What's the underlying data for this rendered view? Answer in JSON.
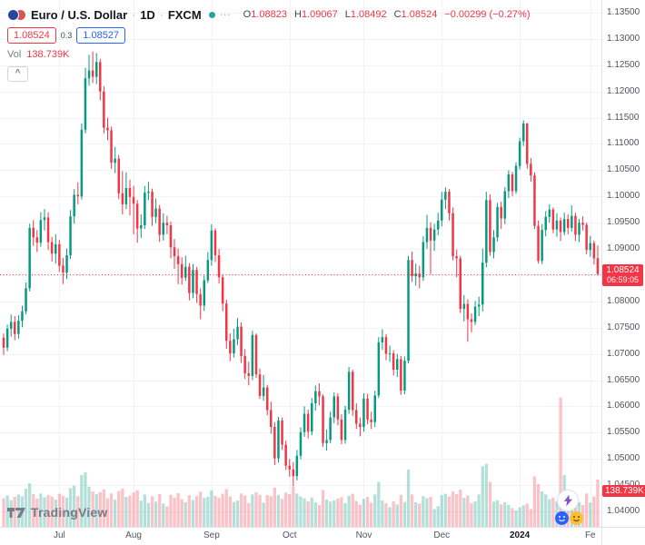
{
  "header": {
    "symbol_name": "Euro / U.S. Dollar",
    "sep": "·",
    "interval": "1D",
    "exchange": "FXCM",
    "ohlc": {
      "o_label": "O",
      "o_value": "1.08823",
      "h_label": "H",
      "h_value": "1.09067",
      "l_label": "L",
      "l_value": "1.08492",
      "c_label": "C",
      "c_value": "1.08524",
      "change": "−0.00299 (−0.27%)"
    },
    "bid": "1.08524",
    "spread": "0.3",
    "ask": "1.08527",
    "vol_label": "Vol",
    "vol_value": "138.739K"
  },
  "price_label": {
    "price": "1.08524",
    "countdown": "06:59:05"
  },
  "volume_axis_label": "138.739K",
  "watermark": {
    "brand": "TradingView"
  },
  "icons": {
    "collapse": "^",
    "more": "⋯"
  },
  "chart_data": {
    "type": "candlestick",
    "title": "Euro / U.S. Dollar",
    "symbol": "EURUSD",
    "interval": "1D",
    "exchange": "FXCM",
    "colors": {
      "up": "#089981",
      "down": "#f23645",
      "volume_up": "rgba(8,153,129,0.3)",
      "volume_down": "rgba(242,54,69,0.3)",
      "grid": "#f0f3fa",
      "axis_text": "#50535e",
      "accent_blue": "#2962ff"
    },
    "y_axis": {
      "top": 1.135,
      "bottom": 1.04
    },
    "last_price": 1.08524,
    "price_ticks": [
      "1.13500",
      "1.13000",
      "1.12500",
      "1.12000",
      "1.11500",
      "1.11000",
      "1.10500",
      "1.10000",
      "1.09500",
      "1.09000",
      "1.08500",
      "1.08000",
      "1.07500",
      "1.07000",
      "1.06500",
      "1.06000",
      "1.05500",
      "1.05000",
      "1.04500",
      "1.04000"
    ],
    "month_ticks": [
      {
        "label": "Jul",
        "i": 15
      },
      {
        "label": "Aug",
        "i": 35
      },
      {
        "label": "Sep",
        "i": 56
      },
      {
        "label": "Oct",
        "i": 77
      },
      {
        "label": "Nov",
        "i": 97
      },
      {
        "label": "Dec",
        "i": 118
      },
      {
        "label": "2024",
        "i": 139,
        "year": true
      },
      {
        "label": "Fe",
        "i": 158
      }
    ],
    "volume_axis_max": 400,
    "candle_format": [
      "open",
      "high",
      "low",
      "close",
      "volume_k"
    ],
    "candles": [
      [
        1.0731,
        1.0739,
        1.0698,
        1.0712,
        84
      ],
      [
        1.0712,
        1.0756,
        1.0705,
        1.0748,
        92
      ],
      [
        1.0748,
        1.0775,
        1.0733,
        1.0761,
        78
      ],
      [
        1.0761,
        1.0772,
        1.0726,
        1.0738,
        88
      ],
      [
        1.0738,
        1.0774,
        1.0729,
        1.0763,
        95
      ],
      [
        1.0763,
        1.0792,
        1.0751,
        1.0781,
        90
      ],
      [
        1.0781,
        1.0836,
        1.0775,
        1.0825,
        112
      ],
      [
        1.0825,
        1.0948,
        1.0819,
        1.094,
        128
      ],
      [
        1.094,
        1.0955,
        1.0906,
        1.0922,
        96
      ],
      [
        1.0922,
        1.0936,
        1.0894,
        1.0912,
        83
      ],
      [
        1.0912,
        1.097,
        1.0904,
        1.0955,
        98
      ],
      [
        1.0955,
        1.0976,
        1.0935,
        1.096,
        87
      ],
      [
        1.096,
        1.097,
        1.0898,
        1.0913,
        93
      ],
      [
        1.0913,
        1.0923,
        1.0876,
        1.0891,
        89
      ],
      [
        1.0891,
        1.0928,
        1.0872,
        1.0909,
        80
      ],
      [
        1.0909,
        1.0917,
        1.0856,
        1.0868,
        97
      ],
      [
        1.0868,
        1.0883,
        1.0833,
        1.0855,
        91
      ],
      [
        1.0855,
        1.0901,
        1.0843,
        1.0888,
        86
      ],
      [
        1.0888,
        1.0974,
        1.0881,
        1.0962,
        114
      ],
      [
        1.0962,
        1.1014,
        1.0948,
        1.1003,
        121
      ],
      [
        1.1003,
        1.1027,
        1.0985,
        1.1,
        90
      ],
      [
        1.1,
        1.1139,
        1.0994,
        1.1127,
        152
      ],
      [
        1.1127,
        1.1245,
        1.112,
        1.1225,
        160
      ],
      [
        1.1225,
        1.127,
        1.1211,
        1.124,
        118
      ],
      [
        1.124,
        1.1276,
        1.1216,
        1.1228,
        104
      ],
      [
        1.1228,
        1.1273,
        1.1214,
        1.1256,
        96
      ],
      [
        1.1256,
        1.1262,
        1.1183,
        1.12,
        102
      ],
      [
        1.12,
        1.121,
        1.112,
        1.1131,
        110
      ],
      [
        1.1131,
        1.115,
        1.1107,
        1.1126,
        84
      ],
      [
        1.1126,
        1.1133,
        1.1052,
        1.1064,
        98
      ],
      [
        1.1064,
        1.1094,
        1.1044,
        1.1072,
        80
      ],
      [
        1.1072,
        1.1079,
        1.0995,
        1.1006,
        105
      ],
      [
        1.1006,
        1.1048,
        1.0966,
        1.0985,
        112
      ],
      [
        1.0985,
        1.1046,
        1.0976,
        1.1016,
        88
      ],
      [
        1.1016,
        1.1032,
        1.0964,
        1.0999,
        92
      ],
      [
        1.0999,
        1.102,
        1.0928,
        1.0986,
        101
      ],
      [
        1.0986,
        1.0993,
        1.0912,
        1.0939,
        108
      ],
      [
        1.0939,
        1.0966,
        1.0921,
        1.0945,
        77
      ],
      [
        1.0945,
        1.102,
        1.0938,
        1.1007,
        95
      ],
      [
        1.1007,
        1.1028,
        1.0993,
        1.1009,
        70
      ],
      [
        1.1009,
        1.1015,
        1.0944,
        1.0961,
        90
      ],
      [
        1.0961,
        1.0996,
        1.0949,
        1.0977,
        74
      ],
      [
        1.0977,
        1.0984,
        1.0913,
        1.0927,
        96
      ],
      [
        1.0927,
        1.0968,
        1.0916,
        1.095,
        68
      ],
      [
        1.095,
        1.0963,
        1.0928,
        1.0945,
        60
      ],
      [
        1.0945,
        1.0952,
        1.0882,
        1.0903,
        94
      ],
      [
        1.0903,
        1.0919,
        1.0862,
        1.0886,
        86
      ],
      [
        1.0886,
        1.0901,
        1.0833,
        1.0871,
        99
      ],
      [
        1.0871,
        1.0884,
        1.0832,
        1.0845,
        81
      ],
      [
        1.0845,
        1.0887,
        1.0839,
        1.0866,
        72
      ],
      [
        1.0866,
        1.0873,
        1.0802,
        1.0816,
        93
      ],
      [
        1.0816,
        1.0871,
        1.0806,
        1.086,
        79
      ],
      [
        1.086,
        1.0866,
        1.0797,
        1.0814,
        90
      ],
      [
        1.0814,
        1.0825,
        1.0766,
        1.0792,
        103
      ],
      [
        1.0792,
        1.0849,
        1.0782,
        1.084,
        85
      ],
      [
        1.084,
        1.0894,
        1.0835,
        1.0879,
        88
      ],
      [
        1.0879,
        1.0947,
        1.0868,
        1.0935,
        107
      ],
      [
        1.0935,
        1.0939,
        1.0875,
        1.0888,
        91
      ],
      [
        1.0888,
        1.09,
        1.0834,
        1.0846,
        85
      ],
      [
        1.0846,
        1.0852,
        1.0781,
        1.0796,
        97
      ],
      [
        1.0796,
        1.0803,
        1.071,
        1.0725,
        111
      ],
      [
        1.0725,
        1.0739,
        1.0686,
        1.0701,
        89
      ],
      [
        1.0701,
        1.0748,
        1.0693,
        1.0728,
        73
      ],
      [
        1.0728,
        1.0768,
        1.0717,
        1.0752,
        77
      ],
      [
        1.0752,
        1.076,
        1.0683,
        1.0696,
        98
      ],
      [
        1.0696,
        1.0709,
        1.0652,
        1.0663,
        92
      ],
      [
        1.0663,
        1.0685,
        1.064,
        1.0658,
        70
      ],
      [
        1.0658,
        1.0744,
        1.065,
        1.0736,
        95
      ],
      [
        1.0736,
        1.0739,
        1.0654,
        1.0661,
        102
      ],
      [
        1.0661,
        1.0672,
        1.0614,
        1.062,
        94
      ],
      [
        1.062,
        1.066,
        1.0611,
        1.0636,
        71
      ],
      [
        1.0636,
        1.0641,
        1.0583,
        1.0593,
        93
      ],
      [
        1.0593,
        1.0609,
        1.0548,
        1.0561,
        90
      ],
      [
        1.0561,
        1.057,
        1.0488,
        1.0501,
        115
      ],
      [
        1.0501,
        1.058,
        1.0493,
        1.0573,
        94
      ],
      [
        1.0573,
        1.0579,
        1.0517,
        1.0527,
        82
      ],
      [
        1.0527,
        1.0535,
        1.0479,
        1.0487,
        100
      ],
      [
        1.0487,
        1.05,
        1.0466,
        1.048,
        96
      ],
      [
        1.048,
        1.0494,
        1.0448,
        1.0467,
        118
      ],
      [
        1.0467,
        1.0517,
        1.0459,
        1.0506,
        98
      ],
      [
        1.0506,
        1.056,
        1.0499,
        1.0551,
        89
      ],
      [
        1.0551,
        1.06,
        1.0542,
        1.0586,
        84
      ],
      [
        1.0586,
        1.0594,
        1.0539,
        1.0552,
        75
      ],
      [
        1.0552,
        1.0616,
        1.0545,
        1.0606,
        86
      ],
      [
        1.0606,
        1.064,
        1.0592,
        1.0629,
        72
      ],
      [
        1.0629,
        1.0644,
        1.0602,
        1.0619,
        64
      ],
      [
        1.0619,
        1.0623,
        1.0523,
        1.053,
        108
      ],
      [
        1.053,
        1.0556,
        1.0516,
        1.0536,
        80
      ],
      [
        1.0536,
        1.059,
        1.053,
        1.0579,
        74
      ],
      [
        1.0579,
        1.0627,
        1.0568,
        1.0619,
        78
      ],
      [
        1.0619,
        1.0625,
        1.0564,
        1.0575,
        83
      ],
      [
        1.0575,
        1.0585,
        1.0528,
        1.0536,
        87
      ],
      [
        1.0536,
        1.0601,
        1.0529,
        1.0594,
        69
      ],
      [
        1.0594,
        1.0675,
        1.0586,
        1.0666,
        91
      ],
      [
        1.0666,
        1.067,
        1.0582,
        1.0593,
        97
      ],
      [
        1.0593,
        1.0606,
        1.0557,
        1.0567,
        76
      ],
      [
        1.0567,
        1.0579,
        1.0543,
        1.0561,
        65
      ],
      [
        1.0561,
        1.0625,
        1.0552,
        1.0615,
        82
      ],
      [
        1.0615,
        1.0624,
        1.0566,
        1.0575,
        88
      ],
      [
        1.0575,
        1.059,
        1.0557,
        1.057,
        71
      ],
      [
        1.057,
        1.063,
        1.0561,
        1.0621,
        95
      ],
      [
        1.0621,
        1.0732,
        1.0616,
        1.0722,
        132
      ],
      [
        1.0722,
        1.0747,
        1.0708,
        1.0732,
        77
      ],
      [
        1.0732,
        1.0738,
        1.0688,
        1.07,
        69
      ],
      [
        1.07,
        1.0716,
        1.0685,
        1.0701,
        58
      ],
      [
        1.0701,
        1.0707,
        1.0659,
        1.067,
        75
      ],
      [
        1.067,
        1.07,
        1.0656,
        1.069,
        66
      ],
      [
        1.069,
        1.0696,
        1.0622,
        1.063,
        94
      ],
      [
        1.063,
        1.0695,
        1.0623,
        1.0687,
        73
      ],
      [
        1.0687,
        1.0887,
        1.0682,
        1.0879,
        168
      ],
      [
        1.0879,
        1.0895,
        1.0837,
        1.0848,
        95
      ],
      [
        1.0848,
        1.0872,
        1.083,
        1.0853,
        72
      ],
      [
        1.0853,
        1.0868,
        1.0825,
        1.0846,
        68
      ],
      [
        1.0846,
        1.0924,
        1.0839,
        1.0913,
        90
      ],
      [
        1.0913,
        1.0965,
        1.09,
        1.094,
        84
      ],
      [
        1.094,
        1.0951,
        1.0852,
        1.0916,
        88
      ],
      [
        1.0916,
        1.0948,
        1.0896,
        1.0937,
        52
      ],
      [
        1.0937,
        1.0969,
        1.0926,
        1.0954,
        61
      ],
      [
        1.0954,
        1.1009,
        1.0943,
        1.0994,
        93
      ],
      [
        1.0994,
        1.1017,
        1.0976,
        1.1009,
        97
      ],
      [
        1.1009,
        1.1014,
        1.0954,
        1.0968,
        89
      ],
      [
        1.0968,
        1.0979,
        1.0878,
        1.0886,
        104
      ],
      [
        1.0886,
        1.0899,
        1.0846,
        1.0882,
        96
      ],
      [
        1.0882,
        1.0887,
        1.0778,
        1.0786,
        109
      ],
      [
        1.0786,
        1.0812,
        1.0762,
        1.0795,
        85
      ],
      [
        1.0795,
        1.0804,
        1.0723,
        1.0766,
        92
      ],
      [
        1.0766,
        1.0777,
        1.0741,
        1.0761,
        70
      ],
      [
        1.0761,
        1.0801,
        1.0755,
        1.079,
        75
      ],
      [
        1.079,
        1.0809,
        1.0772,
        1.0794,
        95
      ],
      [
        1.0794,
        1.0901,
        1.0781,
        1.0874,
        178
      ],
      [
        1.0874,
        1.1009,
        1.0865,
        1.0993,
        185
      ],
      [
        1.0993,
        1.1004,
        1.0887,
        1.0894,
        132
      ],
      [
        1.0894,
        1.0936,
        1.0882,
        1.0922,
        74
      ],
      [
        1.0922,
        1.0988,
        1.0914,
        1.098,
        78
      ],
      [
        1.098,
        1.099,
        1.0938,
        1.0958,
        66
      ],
      [
        1.0958,
        1.1018,
        1.0947,
        1.101,
        72
      ],
      [
        1.101,
        1.105,
        1.0997,
        1.1042,
        64
      ],
      [
        1.1042,
        1.1047,
        1.1001,
        1.101,
        55
      ],
      [
        1.101,
        1.1065,
        1.1005,
        1.1058,
        48
      ],
      [
        1.1058,
        1.1112,
        1.1051,
        1.1105,
        57
      ],
      [
        1.1105,
        1.1145,
        1.1096,
        1.1139,
        63
      ],
      [
        1.1139,
        1.114,
        1.1053,
        1.1062,
        68
      ],
      [
        1.1062,
        1.1073,
        1.1028,
        1.104,
        52
      ],
      [
        1.104,
        1.1046,
        1.0938,
        1.0944,
        148
      ],
      [
        1.0944,
        1.0954,
        1.0872,
        1.0877,
        126
      ],
      [
        1.0877,
        1.0947,
        1.0871,
        1.0936,
        104
      ],
      [
        1.0936,
        1.0972,
        1.0924,
        1.0961,
        95
      ],
      [
        1.0961,
        1.0985,
        1.095,
        1.0975,
        81
      ],
      [
        1.0975,
        1.0979,
        1.093,
        1.0937,
        86
      ],
      [
        1.0937,
        1.0968,
        1.0923,
        1.0954,
        74
      ],
      [
        1.0954,
        1.096,
        1.0915,
        1.0932,
        380
      ],
      [
        1.0932,
        1.0969,
        1.0926,
        1.0957,
        152
      ],
      [
        1.0957,
        1.0966,
        1.0928,
        1.094,
        96
      ],
      [
        1.094,
        1.0983,
        1.0933,
        1.0963,
        88
      ],
      [
        1.0963,
        1.0969,
        1.0915,
        1.0927,
        93
      ],
      [
        1.0927,
        1.0957,
        1.0913,
        1.095,
        72
      ],
      [
        1.095,
        1.0962,
        1.0935,
        1.0946,
        64
      ],
      [
        1.0946,
        1.095,
        1.089,
        1.0898,
        98
      ],
      [
        1.0898,
        1.0925,
        1.0885,
        1.0911,
        71
      ],
      [
        1.0911,
        1.0916,
        1.087,
        1.0882,
        89
      ],
      [
        1.08823,
        1.09067,
        1.08492,
        1.08524,
        138.739
      ]
    ]
  }
}
